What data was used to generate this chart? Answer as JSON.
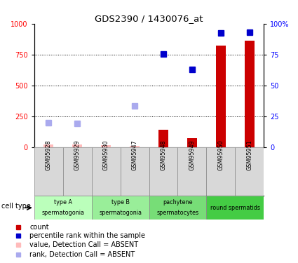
{
  "title": "GDS2390 / 1430076_at",
  "samples": [
    "GSM95928",
    "GSM95929",
    "GSM95930",
    "GSM95947",
    "GSM95948",
    "GSM95949",
    "GSM95950",
    "GSM95951"
  ],
  "count_values": [
    20,
    25,
    15,
    10,
    140,
    75,
    820,
    860
  ],
  "count_absent": [
    true,
    true,
    true,
    true,
    false,
    false,
    false,
    false
  ],
  "rank_absent_vals": [
    200,
    195,
    null,
    335,
    null,
    null,
    null,
    null
  ],
  "rank_present_vals": [
    null,
    null,
    null,
    null,
    755,
    630,
    925,
    930
  ],
  "cell_groups": [
    {
      "start": 0,
      "end": 2,
      "label_top": "type A",
      "label_bot": "spermatogonia",
      "color": "#bbffbb"
    },
    {
      "start": 2,
      "end": 4,
      "label_top": "type B",
      "label_bot": "spermatogonia",
      "color": "#99ee99"
    },
    {
      "start": 4,
      "end": 6,
      "label_top": "pachytene",
      "label_bot": "spermatocytes",
      "color": "#77dd77"
    },
    {
      "start": 6,
      "end": 8,
      "label_top": "round spermatids",
      "label_bot": "",
      "color": "#44cc44"
    }
  ],
  "bar_color": "#cc0000",
  "bar_absent_color": "#ffbbbb",
  "dot_present_color": "#0000cc",
  "dot_absent_color": "#aaaaee",
  "bar_width": 0.35
}
